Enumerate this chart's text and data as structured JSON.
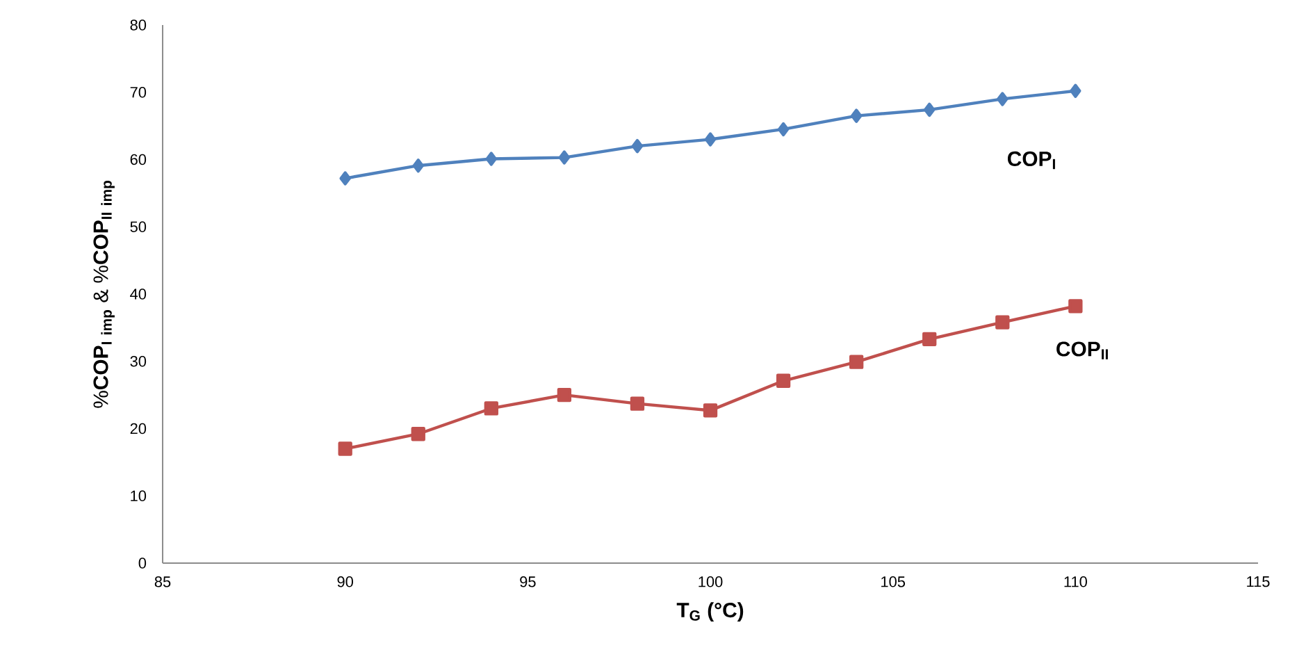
{
  "chart_data": {
    "type": "line",
    "xlabel": "T$_{G}$ (°C)",
    "ylabel": "\\mathbf{\\%COP}_{\\mathbf{I\\ imp}}\\ \\mathbf{\\&}\\ \\mathbf{\\%COP}_{\\mathbf{II\\ imp}}",
    "x": [
      90,
      92,
      94,
      96,
      98,
      100,
      102,
      104,
      106,
      108,
      110
    ],
    "series": [
      {
        "name": "COP$_{I}$",
        "color": "#4f81bd",
        "marker": "diamond",
        "values": [
          57.2,
          59.1,
          60.1,
          60.3,
          62.0,
          63.0,
          64.5,
          66.5,
          67.4,
          69.0,
          70.2
        ]
      },
      {
        "name": "COP$_{II}$",
        "color": "#c0504d",
        "marker": "square",
        "values": [
          17.0,
          19.2,
          23.0,
          25.0,
          23.7,
          22.7,
          27.1,
          29.9,
          33.3,
          35.8,
          38.2
        ]
      }
    ],
    "xlim": [
      85,
      115
    ],
    "xticks": [
      85,
      90,
      95,
      100,
      105,
      110,
      115
    ],
    "ylim": [
      0,
      80
    ],
    "yticks": [
      0,
      10,
      20,
      30,
      40,
      50,
      60,
      70,
      80
    ],
    "grid": false
  }
}
